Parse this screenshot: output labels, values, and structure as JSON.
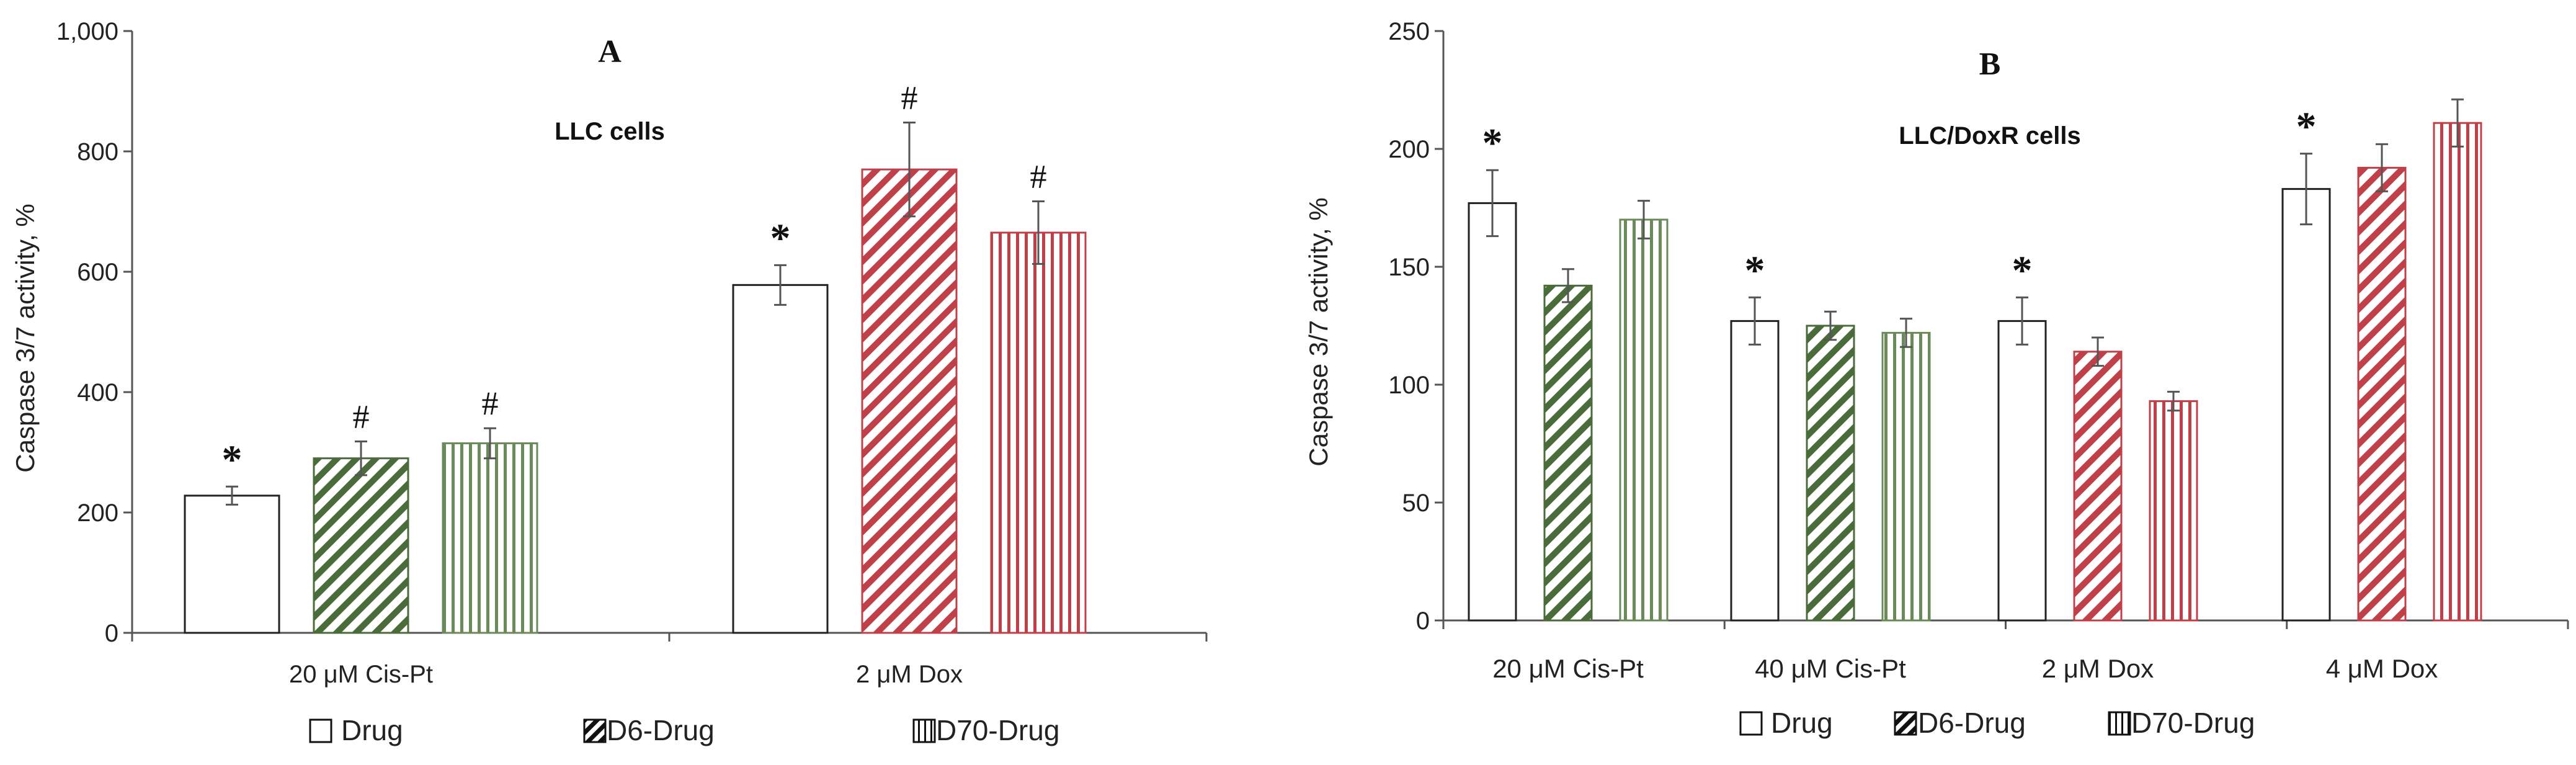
{
  "legend": {
    "entries": [
      "Drug",
      "D6-Drug",
      "D70-Drug"
    ]
  },
  "chart_data": [
    {
      "panel": "A",
      "subtitle": "LLC cells",
      "type": "bar",
      "ylabel": "Caspase 3/7 activity, %",
      "ylim": [
        0,
        1000
      ],
      "yticks": [
        "0",
        "200",
        "400",
        "600",
        "800",
        "1,000"
      ],
      "categories": [
        "20  μM Cis-Pt",
        "2  μM Dox"
      ],
      "series": [
        {
          "name": "Drug",
          "values": [
            228,
            578
          ],
          "errors": [
            15,
            33
          ],
          "annotations": [
            "*",
            "*"
          ]
        },
        {
          "name": "D6-Drug",
          "values": [
            290,
            770
          ],
          "errors": [
            28,
            78
          ],
          "annotations": [
            "#",
            "#"
          ]
        },
        {
          "name": "D70-Drug",
          "values": [
            315,
            665
          ],
          "errors": [
            25,
            52
          ],
          "annotations": [
            "#",
            "#"
          ]
        }
      ]
    },
    {
      "panel": "B",
      "subtitle": "LLC/DoxR cells",
      "type": "bar",
      "ylabel": "Caspase 3/7 activity, %",
      "ylim": [
        0,
        250
      ],
      "yticks": [
        "0",
        "50",
        "100",
        "150",
        "200",
        "250"
      ],
      "categories": [
        "20  μM Cis-Pt",
        "40  μM Cis-Pt",
        "2  μM Dox",
        "4  μM Dox"
      ],
      "series": [
        {
          "name": "Drug",
          "values": [
            177,
            127,
            127,
            183
          ],
          "errors": [
            14,
            10,
            10,
            15
          ],
          "annotations": [
            "*",
            "*",
            "*",
            "*"
          ]
        },
        {
          "name": "D6-Drug",
          "values": [
            142,
            125,
            114,
            192
          ],
          "errors": [
            7,
            6,
            6,
            10
          ],
          "annotations": [
            "",
            "",
            "",
            ""
          ]
        },
        {
          "name": "D70-Drug",
          "values": [
            170,
            122,
            93,
            211
          ],
          "errors": [
            8,
            6,
            4,
            10
          ],
          "annotations": [
            "",
            "",
            "",
            ""
          ]
        }
      ]
    }
  ],
  "colors": {
    "axis": "#555555",
    "bar_outline_drug": "#222222",
    "d6_green": "#4a6b3a",
    "d6_red": "#c0404a",
    "d70_green": "#6b8a5a",
    "d70_red": "#c0404a",
    "error_bar": "#555555"
  }
}
